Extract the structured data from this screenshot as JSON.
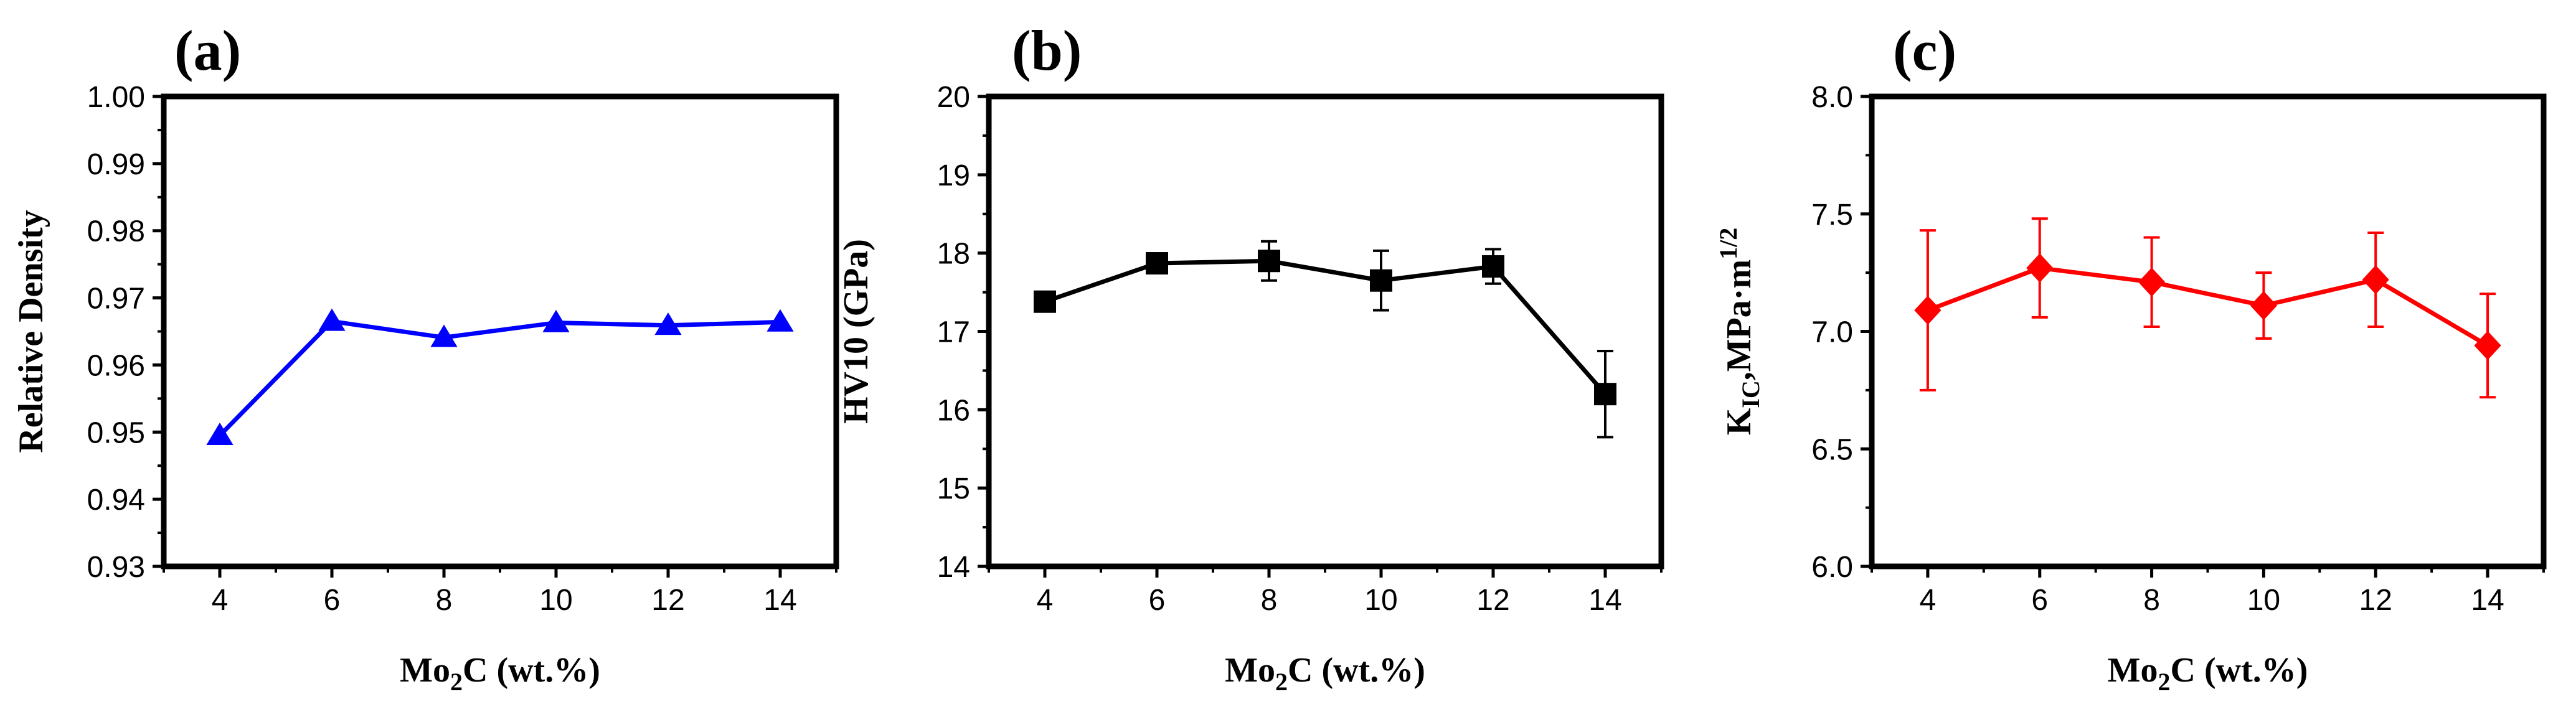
{
  "chart_data": [
    {
      "type": "line",
      "panel_label": "(a)",
      "title": "",
      "xlabel": "Mo2C (wt.%)",
      "xlabel_parts": {
        "base": "Mo",
        "sub": "2",
        "rest": "C (wt.%)"
      },
      "ylabel": "Relative Density",
      "x": [
        4,
        6,
        8,
        10,
        12,
        14
      ],
      "values": [
        0.9495,
        0.9665,
        0.9641,
        0.9663,
        0.9659,
        0.9664
      ],
      "errors": null,
      "xlim": [
        3,
        15
      ],
      "ylim": [
        0.93,
        1.0
      ],
      "x_ticks": [
        "4",
        "6",
        "8",
        "10",
        "12",
        "14"
      ],
      "y_ticks": [
        "0.93",
        "0.94",
        "0.95",
        "0.96",
        "0.97",
        "0.98",
        "0.99",
        "1.00"
      ],
      "color": "#0000ff",
      "marker": "triangle",
      "grid": false,
      "legend": "none"
    },
    {
      "type": "line",
      "panel_label": "(b)",
      "title": "",
      "xlabel": "Mo2C (wt.%)",
      "xlabel_parts": {
        "base": "Mo",
        "sub": "2",
        "rest": "C (wt.%)"
      },
      "ylabel": "HV10 (GPa)",
      "x": [
        4,
        6,
        8,
        10,
        12,
        14
      ],
      "values": [
        17.38,
        17.87,
        17.9,
        17.65,
        17.83,
        16.2
      ],
      "errors": [
        0.12,
        0.05,
        0.25,
        0.38,
        0.22,
        0.55
      ],
      "xlim": [
        3,
        15
      ],
      "ylim": [
        14,
        20
      ],
      "x_ticks": [
        "4",
        "6",
        "8",
        "10",
        "12",
        "14"
      ],
      "y_ticks": [
        "14",
        "15",
        "16",
        "17",
        "18",
        "19",
        "20"
      ],
      "color": "#000000",
      "marker": "square",
      "grid": false,
      "legend": "none"
    },
    {
      "type": "line",
      "panel_label": "(c)",
      "title": "",
      "xlabel": "Mo2C (wt.%)",
      "xlabel_parts": {
        "base": "Mo",
        "sub": "2",
        "rest": "C (wt.%)"
      },
      "ylabel": "KIC,MPa·m1/2",
      "ylabel_parts": {
        "base": "K",
        "sub": "IC",
        "mid": ",MPa·m",
        "sup": "1/2"
      },
      "x": [
        4,
        6,
        8,
        10,
        12,
        14
      ],
      "values": [
        7.09,
        7.27,
        7.21,
        7.11,
        7.22,
        6.94
      ],
      "errors": [
        0.34,
        0.21,
        0.19,
        0.14,
        0.2,
        0.22
      ],
      "xlim": [
        3,
        15
      ],
      "ylim": [
        6.0,
        8.0
      ],
      "x_ticks": [
        "4",
        "6",
        "8",
        "10",
        "12",
        "14"
      ],
      "y_ticks": [
        "6.0",
        "6.5",
        "7.0",
        "7.5",
        "8.0"
      ],
      "color": "#ff0000",
      "marker": "diamond",
      "grid": false,
      "legend": "none"
    }
  ]
}
